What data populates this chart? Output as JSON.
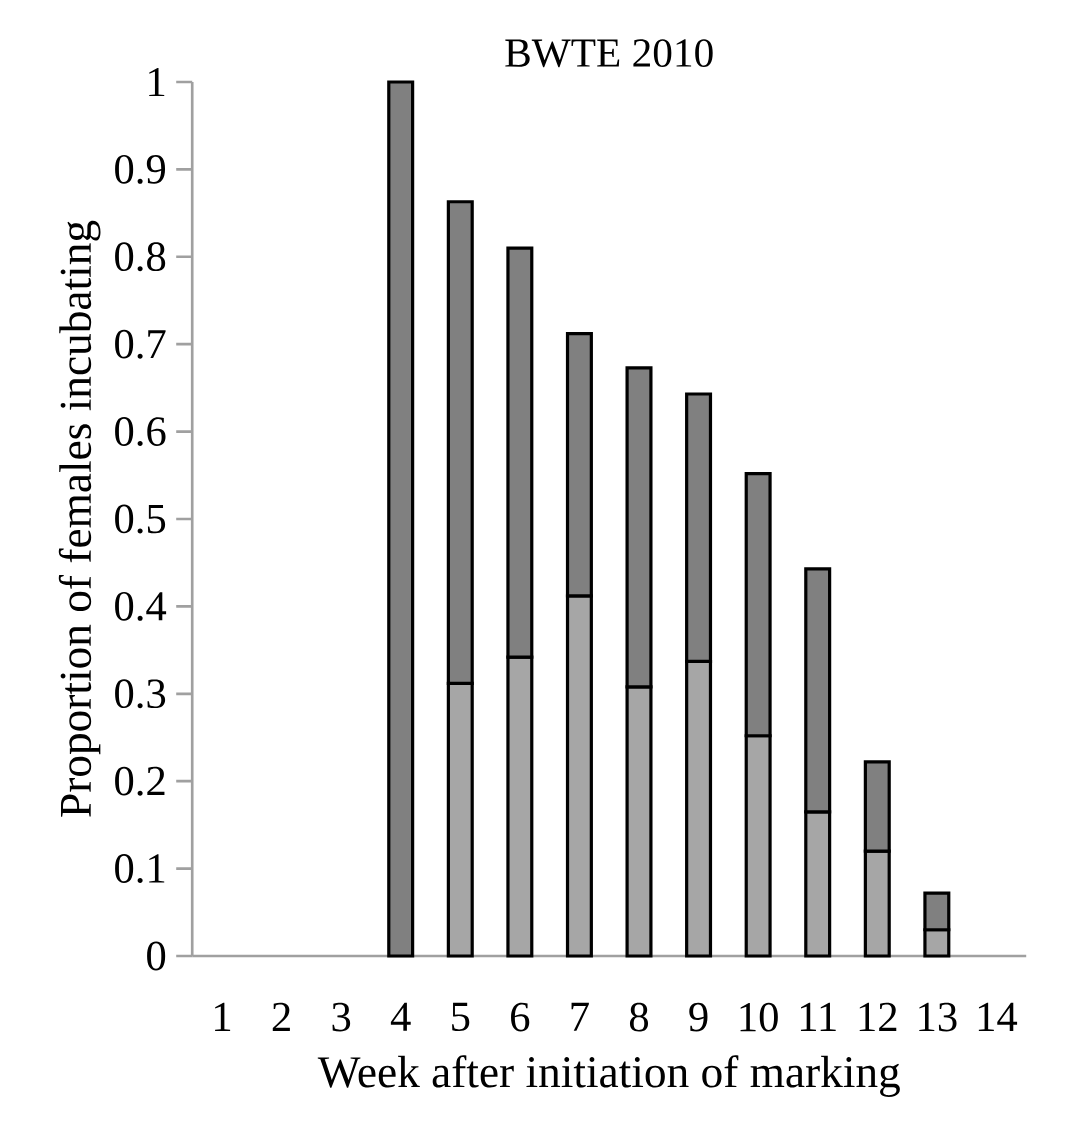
{
  "chart_data": {
    "type": "bar",
    "title": "BWTE 2010",
    "xlabel": "Week after initiation of marking",
    "ylabel": "Proportion of females incubating",
    "categories": [
      "1",
      "2",
      "3",
      "4",
      "5",
      "6",
      "7",
      "8",
      "9",
      "10",
      "11",
      "12",
      "13",
      "14"
    ],
    "stacked": true,
    "series": [
      {
        "color": "#a6a6a6",
        "values": [
          null,
          null,
          null,
          null,
          0.312,
          0.342,
          0.412,
          0.308,
          0.337,
          0.252,
          0.165,
          0.12,
          0.03,
          null
        ]
      },
      {
        "color": "#808080",
        "values": [
          null,
          null,
          null,
          1.0,
          0.551,
          0.468,
          0.3,
          0.365,
          0.306,
          0.3,
          0.278,
          0.102,
          0.042,
          null
        ]
      }
    ],
    "ylim": [
      0,
      1
    ],
    "yticks": [
      0,
      0.1,
      0.2,
      0.3,
      0.4,
      0.5,
      0.6,
      0.7,
      0.8,
      0.9,
      1
    ]
  }
}
